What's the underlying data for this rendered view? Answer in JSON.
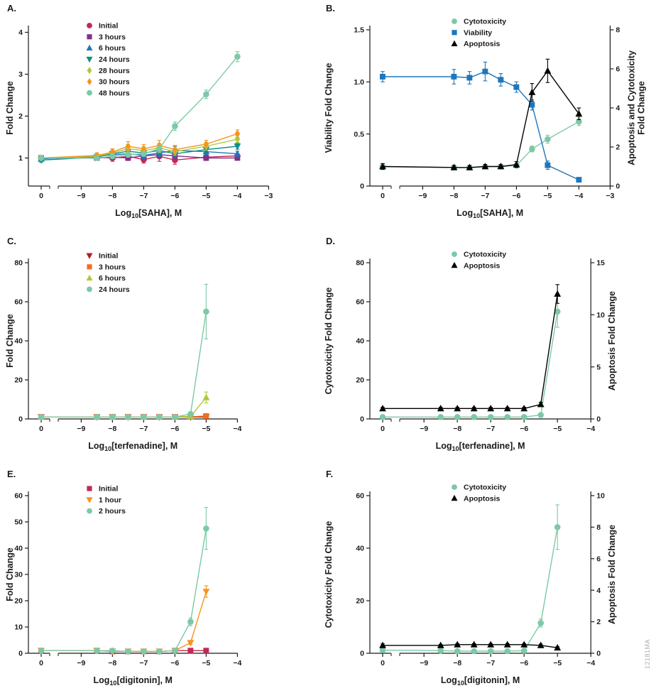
{
  "figure": {
    "watermark": "12181MA"
  },
  "chart_data": [
    {
      "panel": "A.",
      "type": "line",
      "xlabel": {
        "pre": "Log",
        "sub": "10",
        "post": "[SAHA], M"
      },
      "ylabel": "Fold Change",
      "control_tick_label": "0",
      "xlim": [
        -9.6,
        -3
      ],
      "xticks": [
        -9,
        -8,
        -7,
        -6,
        -5,
        -4,
        -3
      ],
      "xtick_labels": [
        "−9",
        "−8",
        "−7",
        "−6",
        "−5",
        "−4",
        "−3"
      ],
      "ylim": [
        0.33,
        4.06
      ],
      "yticks": [
        1,
        2,
        3,
        4
      ],
      "ytick_labels": [
        "1",
        "2",
        "3",
        "4"
      ],
      "x": [
        -8.5,
        -8,
        -7.5,
        -7,
        -6.5,
        -6,
        -5,
        -4
      ],
      "legend_pos": [
        120,
        34
      ],
      "series": [
        {
          "name": "Initial",
          "marker": "circle",
          "color": "#C22A52",
          "values": [
            1.0,
            1.02,
            1.0,
            1.04,
            0.96,
            1.04,
            0.95,
            1.02,
            1.05
          ],
          "errors": [
            0.04,
            0.05,
            0.08,
            0.1,
            0.08,
            0.12,
            0.1,
            0.08,
            0.05
          ]
        },
        {
          "name": "3 hours",
          "marker": "square",
          "color": "#842F8A",
          "values": [
            1.0,
            1.0,
            1.02,
            1.0,
            1.05,
            1.08,
            1.05,
            1.0,
            1.0
          ],
          "errors": [
            0.04,
            0.05,
            0.06,
            0.06,
            0.07,
            0.08,
            0.07,
            0.06,
            0.05
          ]
        },
        {
          "name": "6 hours",
          "marker": "triangle-up",
          "color": "#1F76BC",
          "values": [
            0.98,
            1.04,
            1.08,
            1.1,
            1.06,
            1.12,
            1.18,
            1.15,
            1.1
          ],
          "errors": [
            0.05,
            0.05,
            0.06,
            0.08,
            0.07,
            0.09,
            0.1,
            0.08,
            0.06
          ]
        },
        {
          "name": "24 hours",
          "marker": "triangle-down",
          "color": "#0E8E86",
          "values": [
            0.95,
            1.02,
            1.1,
            1.16,
            1.12,
            1.18,
            1.1,
            1.2,
            1.28
          ],
          "errors": [
            0.05,
            0.06,
            0.07,
            0.09,
            0.08,
            0.1,
            0.09,
            0.08,
            0.07
          ]
        },
        {
          "name": "28 hours",
          "marker": "diamond",
          "color": "#AFCA3B",
          "values": [
            1.0,
            1.04,
            1.12,
            1.22,
            1.18,
            1.24,
            1.15,
            1.28,
            1.45
          ],
          "errors": [
            0.05,
            0.06,
            0.08,
            0.1,
            0.09,
            0.11,
            0.09,
            0.09,
            0.08
          ]
        },
        {
          "name": "30 hours",
          "marker": "diamond",
          "color": "#F7941E",
          "values": [
            1.0,
            1.06,
            1.14,
            1.28,
            1.22,
            1.3,
            1.2,
            1.33,
            1.58
          ],
          "errors": [
            0.05,
            0.06,
            0.08,
            0.11,
            0.1,
            0.12,
            0.1,
            0.09,
            0.09
          ]
        },
        {
          "name": "48 hours",
          "marker": "circle",
          "color": "#7CC9A6",
          "values": [
            1.0,
            1.0,
            1.04,
            1.08,
            1.1,
            1.22,
            1.76,
            2.52,
            3.42
          ],
          "errors": [
            0.04,
            0.04,
            0.05,
            0.06,
            0.06,
            0.08,
            0.1,
            0.1,
            0.12
          ]
        }
      ]
    },
    {
      "panel": "B.",
      "type": "line",
      "xlabel": {
        "pre": "Log",
        "sub": "10",
        "post": "[SAHA], M"
      },
      "ylabel": "Viability Fold Change",
      "ylabel_right": [
        "Apoptosis and Cytotoxicity",
        "Fold Change"
      ],
      "control_tick_label": "0",
      "xlim": [
        -9.6,
        -3
      ],
      "xticks": [
        -9,
        -8,
        -7,
        -6,
        -5,
        -4,
        -3
      ],
      "xtick_labels": [
        "−9",
        "−8",
        "−7",
        "−6",
        "−5",
        "−4",
        "−3"
      ],
      "ylim": [
        0,
        1.5
      ],
      "yticks": [
        0,
        0.5,
        1,
        1.5
      ],
      "ytick_labels": [
        "0",
        "0.5",
        "1.0",
        "1.5"
      ],
      "ylim_right": [
        0,
        8
      ],
      "yticks_right": [
        0,
        2,
        4,
        6,
        8
      ],
      "ytick_labels_right": [
        "0",
        "2",
        "4",
        "6",
        "8"
      ],
      "x": [
        -8,
        -7.5,
        -7,
        -6.5,
        -6,
        -5.5,
        -5,
        -4
      ],
      "legend_pos": [
        185,
        28
      ],
      "series": [
        {
          "name": "Cytotoxicity",
          "marker": "circle",
          "color": "#7CC9A6",
          "axis": "right",
          "values": [
            1.0,
            0.95,
            0.95,
            1.0,
            1.0,
            1.05,
            1.9,
            2.4,
            3.3
          ],
          "errors": [
            0.1,
            0.08,
            0.08,
            0.1,
            0.1,
            0.1,
            0.15,
            0.2,
            0.2
          ]
        },
        {
          "name": "Viability",
          "marker": "square",
          "color": "#1F76BC",
          "axis": "left",
          "values": [
            1.05,
            1.05,
            1.04,
            1.1,
            1.02,
            0.95,
            0.78,
            0.2,
            0.06
          ],
          "errors": [
            0.05,
            0.07,
            0.06,
            0.09,
            0.06,
            0.05,
            0.05,
            0.04,
            0.02
          ]
        },
        {
          "name": "Apoptosis",
          "marker": "triangle-up",
          "color": "#000000",
          "axis": "right",
          "values": [
            1.0,
            0.95,
            0.95,
            1.0,
            1.0,
            1.1,
            4.8,
            5.9,
            3.7
          ],
          "errors": [
            0.15,
            0.1,
            0.1,
            0.1,
            0.1,
            0.15,
            0.45,
            0.6,
            0.3
          ]
        }
      ]
    },
    {
      "panel": "C.",
      "type": "line",
      "xlabel": {
        "pre": "Log",
        "sub": "10",
        "post": "[terfenadine], M"
      },
      "ylabel": "Fold Change",
      "control_tick_label": "0",
      "xlim": [
        -9.6,
        -4
      ],
      "xticks": [
        -9,
        -8,
        -7,
        -6,
        -5,
        -4
      ],
      "xtick_labels": [
        "−9",
        "−8",
        "−7",
        "−6",
        "−5",
        "−4"
      ],
      "ylim": [
        0,
        80
      ],
      "yticks": [
        0,
        20,
        40,
        60,
        80
      ],
      "ytick_labels": [
        "0",
        "20",
        "40",
        "60",
        "80"
      ],
      "x": [
        -8.5,
        -8,
        -7.5,
        -7,
        -6.5,
        -6,
        -5.5,
        -5
      ],
      "legend_pos": [
        120,
        30
      ],
      "series": [
        {
          "name": "Initial",
          "marker": "triangle-down",
          "color": "#AF1E2D",
          "values": [
            1,
            1,
            1,
            1,
            1,
            1,
            1,
            1,
            1
          ],
          "errors": [
            0.4,
            0.4,
            0.4,
            0.4,
            0.4,
            0.4,
            0.4,
            0.4,
            0.5
          ]
        },
        {
          "name": "3 hours",
          "marker": "square",
          "color": "#F26D21",
          "values": [
            1,
            1,
            1,
            1,
            1,
            1,
            1,
            1.1,
            1.5
          ],
          "errors": [
            0.4,
            0.4,
            0.4,
            0.4,
            0.4,
            0.4,
            0.4,
            0.4,
            0.5
          ]
        },
        {
          "name": "6 hours",
          "marker": "triangle-up",
          "color": "#AFCA3B",
          "values": [
            1,
            1,
            1,
            1,
            1,
            1,
            1,
            1.3,
            11
          ],
          "errors": [
            0.4,
            0.4,
            0.4,
            0.4,
            0.4,
            0.4,
            0.4,
            0.4,
            2.8
          ]
        },
        {
          "name": "24 hours",
          "marker": "circle",
          "color": "#7CC9A6",
          "values": [
            1,
            1,
            1,
            1,
            1,
            1,
            1,
            2.5,
            55
          ],
          "errors": [
            0.4,
            0.4,
            0.4,
            0.4,
            0.4,
            0.4,
            0.4,
            0.6,
            14
          ]
        }
      ]
    },
    {
      "panel": "D.",
      "type": "line",
      "xlabel": {
        "pre": "Log",
        "sub": "10",
        "post": "[terfenadine], M"
      },
      "ylabel": "Cytotoxicity Fold Change",
      "ylabel_right": "Apoptosis Fold Change",
      "control_tick_label": "0",
      "xlim": [
        -9.6,
        -4
      ],
      "xticks": [
        -9,
        -8,
        -7,
        -6,
        -5,
        -4
      ],
      "xtick_labels": [
        "−9",
        "−8",
        "−7",
        "−6",
        "−5",
        "−4"
      ],
      "ylim": [
        0,
        80
      ],
      "yticks": [
        0,
        20,
        40,
        60,
        80
      ],
      "ytick_labels": [
        "0",
        "20",
        "40",
        "60",
        "80"
      ],
      "ylim_right": [
        0,
        15
      ],
      "yticks_right": [
        0,
        5,
        10,
        15
      ],
      "ytick_labels_right": [
        "0",
        "5",
        "10",
        "15"
      ],
      "x": [
        -8.5,
        -8,
        -7.5,
        -7,
        -6.5,
        -6,
        -5.5,
        -5
      ],
      "legend_pos": [
        185,
        28
      ],
      "series": [
        {
          "name": "Cytotoxicity",
          "marker": "circle",
          "color": "#7CC9A6",
          "axis": "left",
          "values": [
            1,
            1,
            1,
            1,
            1,
            1,
            1,
            2,
            55
          ],
          "errors": [
            0.4,
            0.4,
            0.4,
            0.4,
            0.4,
            0.4,
            0.4,
            0.6,
            8
          ]
        },
        {
          "name": "Apoptosis",
          "marker": "triangle-up",
          "color": "#000000",
          "axis": "right",
          "values": [
            1,
            1,
            1,
            1,
            1,
            1,
            1,
            1.4,
            12
          ],
          "errors": [
            0.12,
            0.12,
            0.12,
            0.12,
            0.12,
            0.12,
            0.12,
            0.2,
            0.9
          ]
        }
      ]
    },
    {
      "panel": "E.",
      "type": "line",
      "xlabel": {
        "pre": "Log",
        "sub": "10",
        "post": "[digitonin], M"
      },
      "ylabel": "Fold Change",
      "control_tick_label": "0",
      "xlim": [
        -9.6,
        -4
      ],
      "xticks": [
        -9,
        -8,
        -7,
        -6,
        -5,
        -4
      ],
      "xtick_labels": [
        "−9",
        "−8",
        "−7",
        "−6",
        "−5",
        "−4"
      ],
      "ylim": [
        0,
        60
      ],
      "yticks": [
        0,
        10,
        20,
        30,
        40,
        50,
        60
      ],
      "ytick_labels": [
        "0",
        "10",
        "20",
        "30",
        "40",
        "50",
        "60"
      ],
      "x": [
        -8.5,
        -8,
        -7.5,
        -7,
        -6.5,
        -6,
        -5.5,
        -5
      ],
      "legend_pos": [
        120,
        30
      ],
      "series": [
        {
          "name": "Initial",
          "marker": "square",
          "color": "#C22A52",
          "values": [
            1,
            1,
            0.7,
            0.7,
            0.7,
            0.7,
            1,
            1,
            1
          ],
          "errors": [
            0.3,
            0.3,
            0.3,
            0.3,
            0.3,
            0.3,
            0.3,
            0.3,
            0.4
          ]
        },
        {
          "name": "1 hour",
          "marker": "triangle-down",
          "color": "#F7941E",
          "values": [
            1,
            1,
            0.7,
            0.7,
            0.7,
            0.7,
            1,
            4,
            23.5
          ],
          "errors": [
            0.3,
            0.3,
            0.3,
            0.3,
            0.3,
            0.3,
            0.3,
            0.6,
            2.2
          ]
        },
        {
          "name": "2 hours",
          "marker": "circle",
          "color": "#7CC9A6",
          "values": [
            1,
            1,
            1,
            0.7,
            0.7,
            0.7,
            1,
            12,
            47.5
          ],
          "errors": [
            0.3,
            0.3,
            0.3,
            0.3,
            0.3,
            0.3,
            0.3,
            1.5,
            8
          ]
        }
      ]
    },
    {
      "panel": "F.",
      "type": "line",
      "xlabel": {
        "pre": "Log",
        "sub": "10",
        "post": "[digitonin], M"
      },
      "ylabel": "Cytotoxicity Fold Change",
      "ylabel_right": "Apoptosis Fold Change",
      "control_tick_label": "0",
      "xlim": [
        -9.6,
        -4
      ],
      "xticks": [
        -9,
        -8,
        -7,
        -6,
        -5,
        -4
      ],
      "xtick_labels": [
        "−9",
        "−8",
        "−7",
        "−6",
        "−5",
        "−4"
      ],
      "ylim": [
        0,
        60
      ],
      "yticks": [
        0,
        20,
        40,
        60
      ],
      "ytick_labels": [
        "0",
        "20",
        "40",
        "60"
      ],
      "ylim_right": [
        0,
        10
      ],
      "yticks_right": [
        0,
        2,
        4,
        6,
        8,
        10
      ],
      "ytick_labels_right": [
        "0",
        "2",
        "4",
        "6",
        "8",
        "10"
      ],
      "x": [
        -8.5,
        -8,
        -7.5,
        -7,
        -6.5,
        -6,
        -5.5,
        -5
      ],
      "legend_pos": [
        185,
        28
      ],
      "series": [
        {
          "name": "Cytotoxicity",
          "marker": "circle",
          "color": "#7CC9A6",
          "axis": "left",
          "values": [
            1.2,
            1,
            0.8,
            0.8,
            0.8,
            0.8,
            1,
            11.5,
            48
          ],
          "errors": [
            0.4,
            0.3,
            0.3,
            0.3,
            0.3,
            0.3,
            0.4,
            1.5,
            8.5
          ]
        },
        {
          "name": "Apoptosis",
          "marker": "triangle-up",
          "color": "#000000",
          "axis": "right",
          "values": [
            0.5,
            0.5,
            0.55,
            0.55,
            0.55,
            0.55,
            0.55,
            0.5,
            0.35
          ],
          "errors": [
            0.1,
            0.06,
            0.06,
            0.06,
            0.06,
            0.06,
            0.06,
            0.08,
            0.06
          ]
        }
      ]
    }
  ]
}
